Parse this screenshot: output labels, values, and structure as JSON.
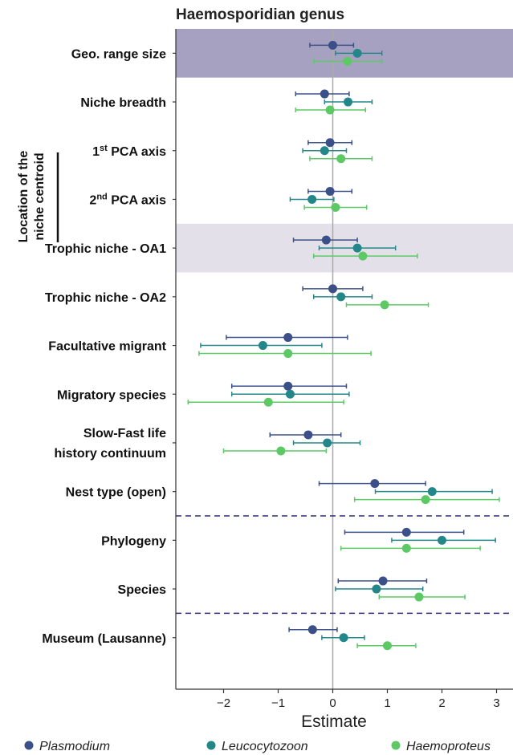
{
  "chart_data": {
    "type": "dot-errorbar",
    "title": "Haemosporidian genus",
    "xlabel": "Estimate",
    "xlim": [
      -2.95,
      3.3
    ],
    "xticks": [
      "−2",
      "−1",
      "0",
      "1",
      "2",
      "3"
    ],
    "xtick_values": [
      -2,
      -1,
      0,
      1,
      2,
      3
    ],
    "side_label_lines": [
      "Location of the",
      "niche centroid"
    ],
    "categories": [
      {
        "lines": [
          "Geo. range size"
        ]
      },
      {
        "lines": [
          "Niche breadth"
        ]
      },
      {
        "lines": [
          "1",
          "st",
          " PCA axis"
        ],
        "sup": true
      },
      {
        "lines": [
          "2",
          "nd",
          " PCA axis"
        ],
        "sup": true
      },
      {
        "lines": [
          "Trophic niche - OA1"
        ]
      },
      {
        "lines": [
          "Trophic niche - OA2"
        ]
      },
      {
        "lines": [
          "Facultative migrant"
        ]
      },
      {
        "lines": [
          "Migratory species"
        ]
      },
      {
        "lines": [
          "Slow-Fast life",
          "history continuum"
        ]
      },
      {
        "lines": [
          "Nest type (open)"
        ]
      },
      {
        "lines": [
          "Phylogeny"
        ]
      },
      {
        "lines": [
          "Species"
        ]
      },
      {
        "lines": [
          "Museum (Lausanne)"
        ]
      }
    ],
    "highlight_bands": [
      {
        "category_index": 0,
        "color": "#a6a1c1"
      },
      {
        "category_index": 4,
        "color": "#e3e0ea"
      }
    ],
    "dashed_separators_after": [
      9,
      11
    ],
    "series": [
      {
        "name": "Plasmodium",
        "color": "#3b5088",
        "estimate": [
          0.0,
          -0.15,
          -0.05,
          -0.05,
          -0.12,
          0.0,
          -0.82,
          -0.82,
          -0.45,
          0.77,
          1.35,
          0.92,
          -0.37
        ],
        "lower": [
          -0.42,
          -0.68,
          -0.45,
          -0.45,
          -0.72,
          -0.55,
          -1.95,
          -1.85,
          -1.15,
          -0.25,
          0.22,
          0.1,
          -0.8
        ],
        "upper": [
          0.38,
          0.3,
          0.35,
          0.35,
          0.45,
          0.55,
          0.27,
          0.25,
          0.15,
          1.7,
          2.4,
          1.72,
          0.08
        ]
      },
      {
        "name": "Leucocytozoon",
        "color": "#23878a",
        "estimate": [
          0.45,
          0.28,
          -0.15,
          -0.38,
          0.45,
          0.15,
          -1.28,
          -0.78,
          -0.1,
          1.82,
          2.0,
          0.8,
          0.2
        ],
        "lower": [
          0.05,
          -0.15,
          -0.55,
          -0.78,
          -0.25,
          -0.35,
          -2.42,
          -1.85,
          -0.72,
          0.78,
          1.08,
          0.05,
          -0.2
        ],
        "upper": [
          0.9,
          0.72,
          0.25,
          0.02,
          1.15,
          0.72,
          -0.2,
          0.3,
          0.5,
          2.92,
          2.98,
          1.65,
          0.58
        ]
      },
      {
        "name": "Haemoproteus",
        "color": "#5cc965",
        "estimate": [
          0.27,
          -0.05,
          0.15,
          0.05,
          0.55,
          0.95,
          -0.82,
          -1.18,
          -0.95,
          1.7,
          1.35,
          1.58,
          1.0
        ],
        "lower": [
          -0.35,
          -0.68,
          -0.42,
          -0.52,
          -0.35,
          0.25,
          -2.45,
          -2.65,
          -2.0,
          0.4,
          0.15,
          0.85,
          0.45
        ],
        "upper": [
          0.9,
          0.6,
          0.72,
          0.62,
          1.55,
          1.75,
          0.7,
          0.2,
          -0.12,
          3.05,
          2.7,
          2.42,
          1.52
        ]
      }
    ],
    "legend": [
      "Plasmodium",
      "Leucocytozoon",
      "Haemoproteus"
    ],
    "legend_position": "bottom"
  }
}
